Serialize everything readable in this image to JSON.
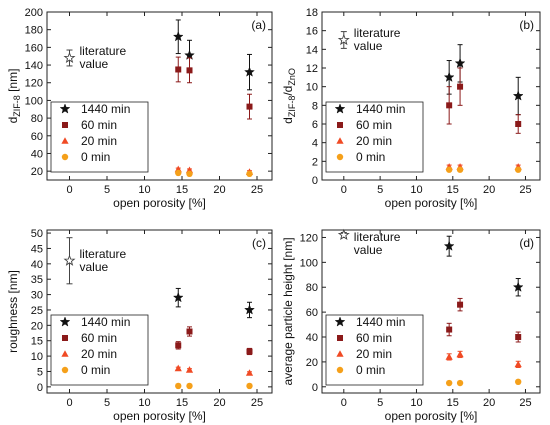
{
  "colors": {
    "1440 min": "#111111",
    "60 min": "#8b1a1a",
    "20 min": "#f04a24",
    "0 min": "#f5a01a",
    "literature": "#444444"
  },
  "chart_data": [
    {
      "type": "scatter",
      "panel_label": "(a)",
      "xlabel": "open porosity [%]",
      "ylabel_main": "d",
      "ylabel_sub": "ZIF-8",
      "ylabel_unit": " [nm]",
      "xlim": [
        -3,
        27
      ],
      "ylim": [
        10,
        200
      ],
      "xticks": [
        0,
        5,
        10,
        15,
        20,
        25
      ],
      "yticks": [
        20,
        40,
        60,
        80,
        100,
        120,
        140,
        160,
        180,
        200
      ],
      "literature": {
        "label_line1": "literature",
        "label_line2": "value",
        "x": 0,
        "y": 148,
        "err": 9
      },
      "legend_position": "bottom-left",
      "series": [
        {
          "name": "1440 min",
          "marker": "star",
          "x": [
            14.5,
            16,
            24
          ],
          "y": [
            172,
            151,
            132
          ],
          "err": [
            19,
            17,
            20
          ]
        },
        {
          "name": "60 min",
          "marker": "square",
          "x": [
            14.5,
            16,
            24
          ],
          "y": [
            135,
            134,
            93
          ],
          "err": [
            14,
            14,
            14
          ]
        },
        {
          "name": "20 min",
          "marker": "triangle",
          "x": [
            14.5,
            16,
            24
          ],
          "y": [
            22,
            21,
            19
          ],
          "err": [
            1.5,
            1.5,
            1.5
          ]
        },
        {
          "name": "0 min",
          "marker": "circle",
          "x": [
            14.5,
            16,
            24
          ],
          "y": [
            18,
            17,
            17
          ],
          "err": [
            1,
            1,
            1
          ]
        }
      ]
    },
    {
      "type": "scatter",
      "panel_label": "(b)",
      "xlabel": "open porosity [%]",
      "ylabel_main": "d",
      "ylabel_sub": "ZIF-8",
      "ylabel_mid": "/d",
      "ylabel_sub2": "ZnO",
      "xlim": [
        -3,
        27
      ],
      "ylim": [
        0,
        18
      ],
      "xticks": [
        0,
        5,
        10,
        15,
        20,
        25
      ],
      "yticks": [
        0,
        2,
        4,
        6,
        8,
        10,
        12,
        14,
        16,
        18
      ],
      "literature": {
        "label_line1": "literature",
        "label_line2": "value",
        "x": 0,
        "y": 15,
        "err": 0.9
      },
      "legend_position": "bottom-left",
      "series": [
        {
          "name": "1440 min",
          "marker": "star",
          "x": [
            14.5,
            16,
            24
          ],
          "y": [
            11,
            12.5,
            9
          ],
          "err": [
            1.8,
            2.0,
            2.0
          ]
        },
        {
          "name": "60 min",
          "marker": "square",
          "x": [
            14.5,
            16,
            24
          ],
          "y": [
            8,
            10,
            6
          ],
          "err": [
            2.0,
            2.0,
            1.0
          ]
        },
        {
          "name": "20 min",
          "marker": "triangle",
          "x": [
            14.5,
            16,
            24
          ],
          "y": [
            1.4,
            1.4,
            1.4
          ],
          "err": [
            0.2,
            0.2,
            0.2
          ]
        },
        {
          "name": "0 min",
          "marker": "circle",
          "x": [
            14.5,
            16,
            24
          ],
          "y": [
            1.1,
            1.1,
            1.1
          ],
          "err": [
            0.1,
            0.1,
            0.1
          ]
        }
      ]
    },
    {
      "type": "scatter",
      "panel_label": "(c)",
      "xlabel": "open porosity [%]",
      "ylabel_main": "roughness [nm]",
      "xlim": [
        -3,
        27
      ],
      "ylim": [
        -2,
        51
      ],
      "xticks": [
        0,
        5,
        10,
        15,
        20,
        25
      ],
      "yticks": [
        0,
        5,
        10,
        15,
        20,
        25,
        30,
        35,
        40,
        45,
        50
      ],
      "literature": {
        "label_line1": "literature",
        "label_line2": "value",
        "x": 0,
        "y": 41,
        "err": 7.5
      },
      "legend_position": "bottom-left",
      "series": [
        {
          "name": "1440 min",
          "marker": "star",
          "x": [
            14.5,
            24
          ],
          "y": [
            29,
            25
          ],
          "err": [
            3,
            2.5
          ]
        },
        {
          "name": "60 min",
          "marker": "square",
          "x": [
            14.5,
            16,
            24
          ],
          "y": [
            13.5,
            18,
            11.5
          ],
          "err": [
            1.2,
            1.5,
            1
          ]
        },
        {
          "name": "20 min",
          "marker": "triangle",
          "x": [
            14.5,
            16,
            24
          ],
          "y": [
            6,
            5.5,
            4.5
          ],
          "err": [
            0.4,
            0.4,
            0.4
          ]
        },
        {
          "name": "0 min",
          "marker": "circle",
          "x": [
            14.5,
            16,
            24
          ],
          "y": [
            0.3,
            0.3,
            0.3
          ],
          "err": [
            0,
            0,
            0
          ]
        }
      ]
    },
    {
      "type": "scatter",
      "panel_label": "(d)",
      "xlabel": "open porosity [%]",
      "ylabel_main": "average particle height [nm]",
      "xlim": [
        -3,
        27
      ],
      "ylim": [
        -5,
        126
      ],
      "xticks": [
        0,
        5,
        10,
        15,
        20,
        25
      ],
      "yticks": [
        0,
        20,
        40,
        60,
        80,
        100,
        120
      ],
      "literature": {
        "label_line1": "literature",
        "label_line2": "value",
        "x": 0,
        "y": 122,
        "err": 2
      },
      "legend_position": "bottom-left",
      "series": [
        {
          "name": "1440 min",
          "marker": "star",
          "x": [
            14.5,
            24
          ],
          "y": [
            113,
            80
          ],
          "err": [
            8,
            7
          ]
        },
        {
          "name": "60 min",
          "marker": "square",
          "x": [
            14.5,
            16,
            24
          ],
          "y": [
            46,
            66,
            40
          ],
          "err": [
            5,
            5,
            4
          ]
        },
        {
          "name": "20 min",
          "marker": "triangle",
          "x": [
            14.5,
            16,
            24
          ],
          "y": [
            24,
            26,
            18
          ],
          "err": [
            2.5,
            2.5,
            2.5
          ]
        },
        {
          "name": "0 min",
          "marker": "circle",
          "x": [
            14.5,
            16,
            24
          ],
          "y": [
            3,
            3,
            4
          ],
          "err": [
            0,
            0,
            0
          ]
        }
      ]
    }
  ]
}
